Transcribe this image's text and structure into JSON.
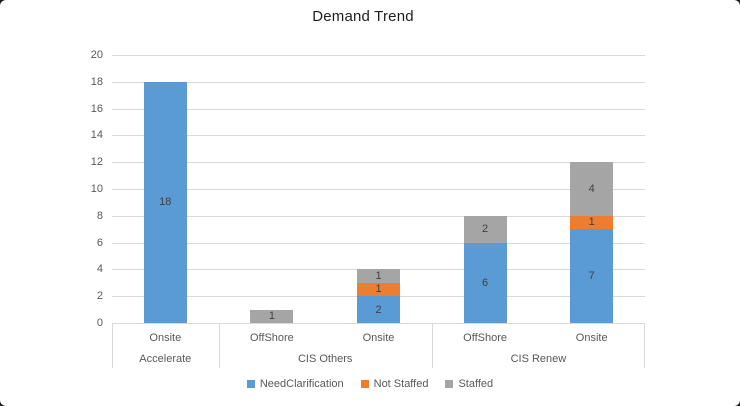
{
  "chart_data": {
    "type": "bar",
    "stacked": true,
    "title": "Demand Trend",
    "ylim": [
      0,
      20
    ],
    "ytick_step": 2,
    "grid": true,
    "legend_position": "bottom",
    "groups": [
      {
        "label": "Accelerate",
        "categories": [
          "Onsite"
        ]
      },
      {
        "label": "CIS Others",
        "categories": [
          "OffShore",
          "Onsite"
        ]
      },
      {
        "label": "CIS Renew",
        "categories": [
          "OffShore",
          "Onsite"
        ]
      }
    ],
    "series": [
      {
        "name": "NeedClarification",
        "color": "#5B9BD5",
        "values": [
          18,
          0,
          2,
          6,
          7
        ]
      },
      {
        "name": "Not Staffed",
        "color": "#ED7D31",
        "values": [
          0,
          0,
          1,
          0,
          1
        ]
      },
      {
        "name": "Staffed",
        "color": "#A5A5A5",
        "values": [
          0,
          1,
          1,
          2,
          4
        ]
      }
    ],
    "colors": {
      "grid": "#D9D9D9",
      "axis_line": "#D9D9D9",
      "tick_label": "#595959",
      "data_label": "#404040",
      "title": "#1F1F1F"
    }
  }
}
